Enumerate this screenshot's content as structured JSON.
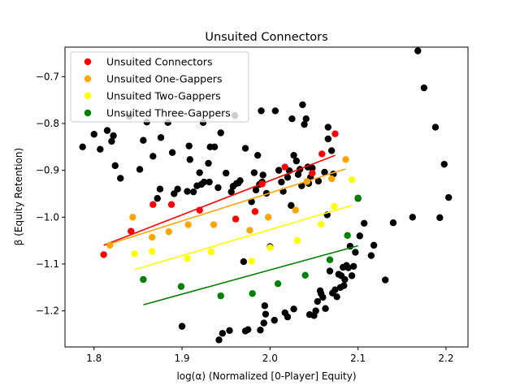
{
  "chart_data": {
    "type": "scatter",
    "title": "Unsuited Connectors",
    "xlabel": "log(α) (Normalized [0-Player] Equity)",
    "ylabel": "β (Equity Retention)",
    "xlim": [
      1.767,
      2.225
    ],
    "ylim": [
      -1.277,
      -0.637
    ],
    "xticks": [
      "1.8",
      "1.9",
      "2.0",
      "2.1",
      "2.2"
    ],
    "xtick_values": [
      1.8,
      1.9,
      2.0,
      2.1,
      2.2
    ],
    "yticks": [
      "−1.2",
      "−1.1",
      "−1.0",
      "−0.9",
      "−0.8",
      "−0.7"
    ],
    "ytick_values": [
      -1.2,
      -1.1,
      -1.0,
      -0.9,
      -0.8,
      -0.7
    ],
    "grid": false,
    "legend_position": "upper-left",
    "background": {
      "color": "#000000",
      "points": [
        [
          1.787,
          -0.85
        ],
        [
          1.8,
          -0.823
        ],
        [
          1.807,
          -0.855
        ],
        [
          1.815,
          -0.815
        ],
        [
          1.82,
          -0.838
        ],
        [
          1.822,
          -0.826
        ],
        [
          1.824,
          -0.89
        ],
        [
          1.83,
          -0.917
        ],
        [
          1.84,
          -0.785
        ],
        [
          1.852,
          -0.898
        ],
        [
          1.856,
          -0.836
        ],
        [
          1.86,
          -0.797
        ],
        [
          1.867,
          -0.87
        ],
        [
          1.872,
          -0.96
        ],
        [
          1.875,
          -0.94
        ],
        [
          1.876,
          -0.83
        ],
        [
          1.884,
          -0.798
        ],
        [
          1.889,
          -0.862
        ],
        [
          1.891,
          -0.95
        ],
        [
          1.895,
          -0.94
        ],
        [
          1.9,
          -1.233
        ],
        [
          1.906,
          -0.945
        ],
        [
          1.908,
          -0.848
        ],
        [
          1.909,
          -0.877
        ],
        [
          1.913,
          -0.946
        ],
        [
          1.917,
          -0.933
        ],
        [
          1.92,
          -0.905
        ],
        [
          1.922,
          -0.93
        ],
        [
          1.924,
          -0.798
        ],
        [
          1.925,
          -0.925
        ],
        [
          1.93,
          -0.885
        ],
        [
          1.931,
          -0.925
        ],
        [
          1.932,
          -0.85
        ],
        [
          1.937,
          -0.85
        ],
        [
          1.941,
          -0.937
        ],
        [
          1.942,
          -1.262
        ],
        [
          1.944,
          -0.82
        ],
        [
          1.946,
          -1.248
        ],
        [
          1.95,
          -0.906
        ],
        [
          1.954,
          -1.242
        ],
        [
          1.956,
          -0.946
        ],
        [
          1.958,
          -0.934
        ],
        [
          1.96,
          -0.783
        ],
        [
          1.962,
          -0.928
        ],
        [
          1.964,
          -0.927
        ],
        [
          1.966,
          -0.922
        ],
        [
          1.97,
          -1.095
        ],
        [
          1.972,
          -1.243
        ],
        [
          1.972,
          -0.853
        ],
        [
          1.975,
          -1.24
        ],
        [
          1.979,
          -0.967
        ],
        [
          1.982,
          -0.905
        ],
        [
          1.984,
          -0.942
        ],
        [
          1.986,
          -0.868
        ],
        [
          1.988,
          -0.93
        ],
        [
          1.989,
          -1.241
        ],
        [
          1.99,
          -0.773
        ],
        [
          1.991,
          -0.925
        ],
        [
          1.992,
          -0.91
        ],
        [
          1.993,
          -1.226
        ],
        [
          1.994,
          -1.189
        ],
        [
          1.995,
          -1.207
        ],
        [
          1.996,
          -0.949
        ],
        [
          2.0,
          -1.063
        ],
        [
          2.005,
          -1.22
        ],
        [
          2.006,
          -0.773
        ],
        [
          2.01,
          -0.9
        ],
        [
          2.013,
          -0.925
        ],
        [
          2.015,
          -0.945
        ],
        [
          2.017,
          -1.204
        ],
        [
          2.02,
          -0.915
        ],
        [
          2.02,
          -1.213
        ],
        [
          2.022,
          -0.901
        ],
        [
          2.024,
          -0.975
        ],
        [
          2.025,
          -0.79
        ],
        [
          2.027,
          -0.868
        ],
        [
          2.027,
          -1.196
        ],
        [
          2.03,
          -0.88
        ],
        [
          2.032,
          -0.909
        ],
        [
          2.034,
          -0.898
        ],
        [
          2.036,
          -0.933
        ],
        [
          2.037,
          -0.76
        ],
        [
          2.039,
          -0.802
        ],
        [
          2.041,
          -0.79
        ],
        [
          2.043,
          -0.893
        ],
        [
          2.044,
          -0.928
        ],
        [
          2.045,
          -1.208
        ],
        [
          2.046,
          -0.915
        ],
        [
          2.048,
          -0.895
        ],
        [
          2.05,
          -1.21
        ],
        [
          2.052,
          -1.2
        ],
        [
          2.054,
          -1.18
        ],
        [
          2.055,
          -0.923
        ],
        [
          2.057,
          -1.157
        ],
        [
          2.058,
          -1.163
        ],
        [
          2.06,
          -1.171
        ],
        [
          2.062,
          -0.904
        ],
        [
          2.063,
          -1.195
        ],
        [
          2.065,
          -0.995
        ],
        [
          2.066,
          -0.808
        ],
        [
          2.066,
          -0.833
        ],
        [
          2.068,
          -1.115
        ],
        [
          2.07,
          -0.858
        ],
        [
          2.071,
          -1.162
        ],
        [
          2.072,
          -0.908
        ],
        [
          2.074,
          -1.155
        ],
        [
          2.076,
          -1.17
        ],
        [
          2.078,
          -1.122
        ],
        [
          2.08,
          -1.15
        ],
        [
          2.081,
          -1.125
        ],
        [
          2.083,
          -1.107
        ],
        [
          2.084,
          -1.146
        ],
        [
          2.085,
          -1.133
        ],
        [
          2.087,
          -1.103
        ],
        [
          2.089,
          -1.108
        ],
        [
          2.091,
          -1.062
        ],
        [
          2.093,
          -1.125
        ],
        [
          2.095,
          -1.105
        ],
        [
          2.097,
          -1.075
        ],
        [
          2.1,
          -0.96
        ],
        [
          2.102,
          -1.04
        ],
        [
          2.107,
          -1.013
        ],
        [
          2.115,
          -1.082
        ],
        [
          2.118,
          -1.06
        ],
        [
          2.131,
          -1.134
        ],
        [
          2.14,
          -1.012
        ],
        [
          2.162,
          -1.0
        ],
        [
          2.168,
          -0.645
        ],
        [
          2.175,
          -0.724
        ],
        [
          2.188,
          -0.808
        ],
        [
          2.193,
          -1.001
        ],
        [
          2.198,
          -0.887
        ],
        [
          2.203,
          -0.958
        ]
      ]
    },
    "series": [
      {
        "name": "Unsuited Connectors",
        "color": "#ff0000",
        "points": [
          [
            1.811,
            -1.08
          ],
          [
            1.842,
            -1.03
          ],
          [
            1.867,
            -0.973
          ],
          [
            1.888,
            -0.973
          ],
          [
            1.92,
            -0.985
          ],
          [
            1.961,
            -1.004
          ],
          [
            1.983,
            -0.988
          ],
          [
            1.991,
            -0.929
          ],
          [
            2.017,
            -0.893
          ],
          [
            2.048,
            -0.906
          ],
          [
            2.059,
            -0.865
          ],
          [
            2.074,
            -0.822
          ]
        ],
        "trend": [
          [
            1.811,
            -1.06
          ],
          [
            2.074,
            -0.868
          ]
        ]
      },
      {
        "name": "Unsuited One-Gappers",
        "color": "#ffa500",
        "points": [
          [
            1.818,
            -1.06
          ],
          [
            1.844,
            -1.0
          ],
          [
            1.866,
            -1.043
          ],
          [
            1.885,
            -1.031
          ],
          [
            1.907,
            -1.016
          ],
          [
            1.936,
            -1.016
          ],
          [
            1.977,
            -1.028
          ],
          [
            1.998,
            -1.0
          ],
          [
            2.029,
            -0.985
          ],
          [
            2.042,
            -0.924
          ],
          [
            2.07,
            -0.918
          ],
          [
            2.086,
            -0.877
          ]
        ],
        "trend": [
          [
            1.818,
            -1.057
          ],
          [
            2.086,
            -0.897
          ]
        ]
      },
      {
        "name": "Unsuited Two-Gappers",
        "color": "#ffff00",
        "points": [
          [
            1.846,
            -1.078
          ],
          [
            1.866,
            -1.073
          ],
          [
            1.906,
            -1.088
          ],
          [
            1.933,
            -1.074
          ],
          [
            1.979,
            -1.094
          ],
          [
            2.0,
            -1.065
          ],
          [
            2.031,
            -1.05
          ],
          [
            2.058,
            -1.015
          ],
          [
            2.073,
            -0.977
          ],
          [
            2.093,
            -0.92
          ]
        ],
        "trend": [
          [
            1.846,
            -1.112
          ],
          [
            2.093,
            -0.975
          ]
        ]
      },
      {
        "name": "Unsuited Three-Gappers",
        "color": "#008000",
        "points": [
          [
            1.856,
            -1.133
          ],
          [
            1.899,
            -1.148
          ],
          [
            1.944,
            -1.168
          ],
          [
            1.98,
            -1.163
          ],
          [
            2.009,
            -1.142
          ],
          [
            2.04,
            -1.124
          ],
          [
            2.068,
            -1.091
          ],
          [
            2.088,
            -1.039
          ],
          [
            2.1,
            -0.959
          ]
        ],
        "trend": [
          [
            1.856,
            -1.187
          ],
          [
            2.1,
            -1.061
          ]
        ]
      }
    ]
  }
}
